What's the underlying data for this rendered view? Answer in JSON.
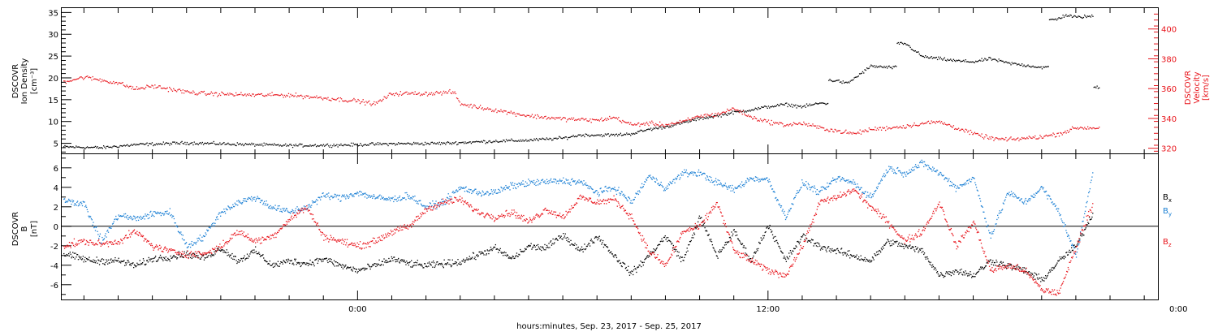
{
  "colors": {
    "black": "#000000",
    "red": "#e8141b",
    "blue": "#1a7fd4"
  },
  "xlabel": "hours:minutes, Sep. 23, 2017 - Sep. 25, 2017",
  "chart_data": [
    {
      "type": "scatter",
      "panel": "top",
      "x_unit": "hours since 2017-09-23 00:00",
      "xlim": [
        -8.65,
        23.4
      ],
      "x_ticks": [
        {
          "x": 0,
          "label": "0:00"
        },
        {
          "x": 12,
          "label": "12:00"
        },
        {
          "x": 24,
          "label": "0:00"
        }
      ],
      "ylabel_left": [
        "DSCOVR",
        "Ion Density",
        "[cm⁻³]"
      ],
      "ylim_left": [
        2.5,
        36
      ],
      "yticks_left": [
        5,
        10,
        15,
        20,
        25,
        30,
        35
      ],
      "ylabel_right": [
        "DSCOVR",
        "Velocity",
        "[km/s]"
      ],
      "ylim_right": [
        316,
        414
      ],
      "yticks_right": [
        320,
        340,
        360,
        380,
        400
      ],
      "series": [
        {
          "axis": "left",
          "color": "black",
          "x": [
            -8.6,
            -7.5,
            -6.5,
            -5.0,
            -3.5,
            -2.0,
            -0.5,
            1.0,
            2.5,
            4.0,
            5.0,
            6.0,
            6.5,
            7.5,
            8.0,
            8.5,
            9.0,
            9.5,
            10.0,
            10.5,
            11.0,
            11.5,
            12.0,
            12.5,
            13.0,
            13.5,
            14.0,
            14.3,
            14.6,
            15.0,
            15.5,
            16.0,
            16.5,
            17.0,
            17.5,
            18.0,
            18.5,
            19.0,
            19.5,
            20.0,
            20.4,
            20.7,
            21.0,
            21.3,
            21.7
          ],
          "y": [
            4.3,
            4.1,
            4.8,
            5.2,
            4.9,
            4.6,
            4.7,
            5.0,
            5.1,
            5.6,
            5.8,
            6.3,
            7.0,
            7.0,
            7.3,
            8.3,
            8.9,
            9.8,
            10.8,
            11.4,
            12.2,
            12.8,
            13.5,
            14.0,
            13.5,
            14.3,
            19.5,
            18.8,
            20.5,
            22.8,
            22.5,
            28.0,
            25.0,
            24.5,
            24.0,
            23.8,
            24.5,
            23.5,
            23.0,
            22.5,
            33.5,
            34.5,
            34.0,
            34.2,
            18.0
          ]
        },
        {
          "axis": "right",
          "color": "red",
          "x": [
            -8.6,
            -8.0,
            -7.0,
            -6.5,
            -6.0,
            -5.0,
            -4.5,
            -3.0,
            -2.0,
            -1.0,
            0.0,
            0.5,
            1.0,
            2.0,
            2.8,
            3.0,
            4.0,
            4.5,
            5.0,
            6.0,
            7.0,
            7.5,
            8.0,
            8.5,
            9.0,
            9.5,
            10.0,
            10.5,
            11.0,
            11.5,
            12.0,
            12.5,
            13.0,
            13.5,
            14.0,
            14.5,
            15.0,
            16.0,
            16.5,
            17.0,
            17.5,
            18.0,
            18.5,
            19.0,
            19.5,
            20.0,
            20.5,
            21.0,
            21.7
          ],
          "y": [
            365,
            368,
            364,
            360,
            362,
            358,
            357,
            356,
            356,
            354,
            352,
            350,
            357,
            357,
            358,
            350,
            346,
            344,
            342,
            340,
            339,
            341,
            336,
            337,
            336,
            338,
            342,
            343,
            347,
            341,
            338,
            336,
            337,
            334,
            332,
            330,
            333,
            335,
            337,
            338,
            334,
            330,
            327,
            326,
            327,
            328,
            330,
            334,
            334
          ]
        }
      ]
    },
    {
      "type": "scatter",
      "panel": "bottom",
      "x_unit": "hours since 2017-09-23 00:00",
      "xlim": [
        -8.65,
        23.4
      ],
      "ylabel_left": [
        "DSCOVR",
        "B",
        "[nT]"
      ],
      "ylim_left": [
        -7.6,
        7.4
      ],
      "yticks_left": [
        6,
        4,
        2,
        0,
        -2,
        -4,
        -6
      ],
      "reference_line": 0,
      "legend": [
        {
          "label": "B",
          "sub": "x",
          "color": "black"
        },
        {
          "label": "B",
          "sub": "y",
          "color": "blue"
        },
        {
          "label": "B",
          "sub": "z",
          "color": "red"
        }
      ],
      "series": [
        {
          "name": "Bx",
          "color": "black",
          "x": [
            -8.6,
            -7.8,
            -7.0,
            -6.5,
            -6.0,
            -5.5,
            -5.0,
            -4.5,
            -4.0,
            -3.5,
            -3.0,
            -2.5,
            -2.0,
            -1.5,
            -1.0,
            -0.5,
            0.0,
            0.5,
            1.0,
            1.5,
            2.0,
            3.0,
            4.0,
            4.5,
            5.0,
            5.5,
            6.0,
            6.5,
            7.0,
            7.5,
            8.0,
            8.5,
            9.0,
            9.5,
            10.0,
            10.5,
            11.0,
            11.5,
            12.0,
            12.5,
            13.0,
            13.5,
            14.0,
            14.5,
            15.0,
            15.5,
            16.0,
            16.5,
            17.0,
            17.5,
            18.0,
            18.5,
            19.0,
            19.5,
            20.0,
            20.5,
            21.0,
            21.5
          ],
          "y": [
            -2.8,
            -3.5,
            -3.5,
            -4.0,
            -3.3,
            -3.1,
            -2.8,
            -3.2,
            -2.2,
            -3.5,
            -2.5,
            -4.0,
            -3.5,
            -3.8,
            -3.3,
            -4.0,
            -4.5,
            -4.0,
            -3.3,
            -3.8,
            -4.0,
            -3.6,
            -2.2,
            -3.3,
            -2.0,
            -2.2,
            -0.8,
            -2.5,
            -1.0,
            -3.0,
            -4.8,
            -3.0,
            -1.0,
            -3.5,
            1.0,
            -3.0,
            -0.5,
            -3.5,
            0.2,
            -3.5,
            -1.0,
            -2.0,
            -2.5,
            -3.0,
            -3.5,
            -1.5,
            -2.0,
            -2.5,
            -5.0,
            -4.5,
            -5.0,
            -3.5,
            -4.0,
            -4.5,
            -5.5,
            -3.5,
            -2.0,
            1.5
          ]
        },
        {
          "name": "By",
          "color": "blue",
          "x": [
            -8.6,
            -8.0,
            -7.5,
            -7.0,
            -6.5,
            -6.0,
            -5.5,
            -5.0,
            -4.5,
            -4.0,
            -3.5,
            -3.0,
            -2.5,
            -2.0,
            -1.5,
            -1.0,
            -0.5,
            0.0,
            0.5,
            1.0,
            1.5,
            2.0,
            2.5,
            3.0,
            3.5,
            4.0,
            4.5,
            5.0,
            5.5,
            6.0,
            6.5,
            7.0,
            7.5,
            8.0,
            8.5,
            9.0,
            9.5,
            10.0,
            10.5,
            11.0,
            11.5,
            12.0,
            12.5,
            13.0,
            13.5,
            14.0,
            14.5,
            15.0,
            15.5,
            16.0,
            16.5,
            17.0,
            17.5,
            18.0,
            18.5,
            19.0,
            19.5,
            20.0,
            20.5,
            21.0,
            21.5
          ],
          "y": [
            2.8,
            2.3,
            -1.5,
            1.2,
            0.8,
            1.3,
            1.5,
            -2.0,
            -1.0,
            1.5,
            2.5,
            3.0,
            2.0,
            1.5,
            2.0,
            3.2,
            3.0,
            3.5,
            3.0,
            2.8,
            3.2,
            2.0,
            2.5,
            4.0,
            3.5,
            3.5,
            4.2,
            4.5,
            4.6,
            4.7,
            4.6,
            3.5,
            4.0,
            2.5,
            5.2,
            4.0,
            5.5,
            5.5,
            4.5,
            3.8,
            5.0,
            4.8,
            1.0,
            4.5,
            3.5,
            5.0,
            4.5,
            3.0,
            6.0,
            5.5,
            6.5,
            5.5,
            4.0,
            5.0,
            -1.0,
            3.5,
            2.5,
            4.0,
            1.5,
            -3.0,
            6.0
          ]
        },
        {
          "name": "Bz",
          "color": "red",
          "x": [
            -8.6,
            -8.0,
            -7.5,
            -7.0,
            -6.5,
            -6.0,
            -5.5,
            -5.0,
            -4.5,
            -4.0,
            -3.5,
            -3.0,
            -2.5,
            -2.0,
            -1.5,
            -1.0,
            -0.5,
            0.0,
            0.5,
            1.0,
            1.5,
            2.0,
            2.5,
            3.0,
            3.5,
            4.0,
            4.5,
            5.0,
            5.5,
            6.0,
            6.5,
            7.0,
            7.5,
            8.0,
            8.5,
            9.0,
            9.5,
            10.0,
            10.5,
            11.0,
            11.5,
            12.0,
            12.5,
            13.0,
            13.5,
            14.0,
            14.5,
            15.0,
            15.5,
            16.0,
            16.5,
            17.0,
            17.5,
            18.0,
            18.5,
            19.0,
            19.5,
            20.0,
            20.5,
            21.0,
            21.5
          ],
          "y": [
            -2.0,
            -1.5,
            -1.8,
            -1.5,
            -0.5,
            -2.0,
            -2.5,
            -2.8,
            -2.8,
            -2.0,
            -0.5,
            -1.5,
            -1.0,
            0.8,
            2.0,
            -1.0,
            -1.5,
            -2.0,
            -1.5,
            -0.5,
            0.0,
            1.8,
            2.5,
            2.8,
            1.5,
            1.0,
            1.5,
            0.5,
            1.8,
            1.0,
            3.0,
            2.5,
            2.8,
            1.0,
            -2.5,
            -4.0,
            -0.5,
            0.0,
            2.5,
            -2.5,
            -3.5,
            -4.5,
            -5.0,
            -2.0,
            2.5,
            3.0,
            3.8,
            2.0,
            0.5,
            -1.5,
            -0.5,
            2.5,
            -2.0,
            0.5,
            -4.5,
            -4.0,
            -4.5,
            -6.5,
            -6.8,
            -2.0,
            2.5
          ]
        }
      ]
    }
  ]
}
